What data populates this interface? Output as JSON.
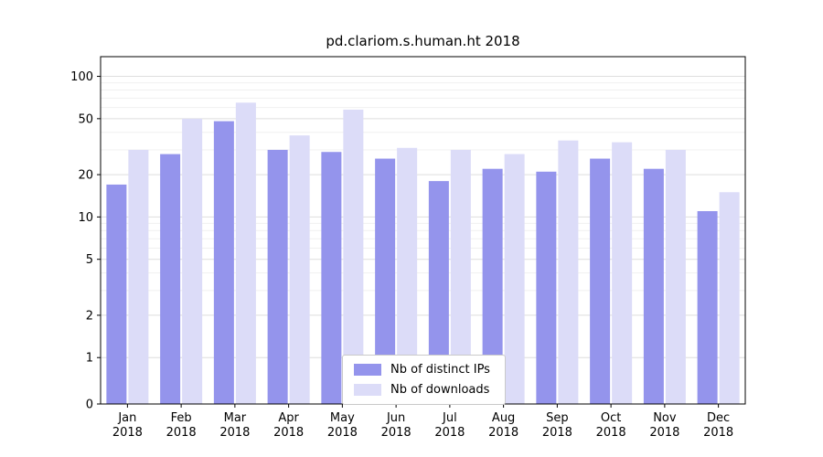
{
  "chart_data": {
    "type": "bar",
    "title": "pd.clariom.s.human.ht 2018",
    "categories": [
      "Jan",
      "Feb",
      "Mar",
      "Apr",
      "May",
      "Jun",
      "Jul",
      "Aug",
      "Sep",
      "Oct",
      "Nov",
      "Dec"
    ],
    "year_label": "2018",
    "series": [
      {
        "name": "Nb of distinct IPs",
        "color": "#9494ec",
        "values": [
          17,
          28,
          48,
          30,
          29,
          26,
          18,
          22,
          21,
          26,
          22,
          11
        ]
      },
      {
        "name": "Nb of downloads",
        "color": "#dcdcf8",
        "values": [
          30,
          50,
          65,
          38,
          58,
          31,
          30,
          28,
          35,
          34,
          30,
          15
        ]
      }
    ],
    "yticks": [
      0,
      1,
      2,
      5,
      10,
      20,
      50,
      100
    ],
    "minor_ticks": [
      3,
      4,
      6,
      7,
      8,
      9,
      30,
      40,
      60,
      70,
      80,
      90
    ],
    "scale": "log-like",
    "grid": true,
    "legend_position": "lower-center",
    "ylim": [
      0,
      138
    ]
  }
}
